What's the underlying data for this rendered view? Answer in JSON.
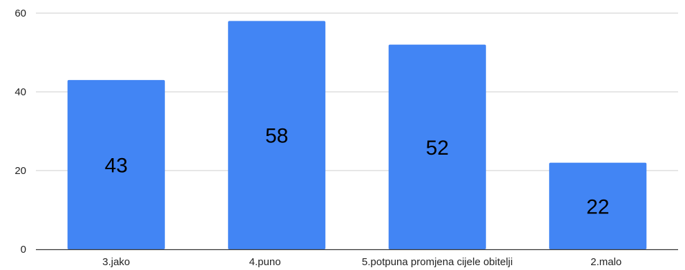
{
  "chart_data": {
    "type": "bar",
    "categories": [
      "3.jako",
      "4.puno",
      "5.potpuna promjena cijele obitelji",
      "2.malo"
    ],
    "values": [
      43,
      58,
      52,
      22
    ],
    "data_labels": [
      "43",
      "58",
      "52",
      "22"
    ],
    "title": "",
    "xlabel": "",
    "ylabel": "",
    "ylim": [
      0,
      60
    ],
    "yticks": [
      0,
      20,
      40,
      60
    ],
    "ytick_labels": [
      "0",
      "20",
      "40",
      "60"
    ],
    "grid": true,
    "legend": "none",
    "colors": {
      "bar": "#4285f4",
      "grid": "#cccccc",
      "axis": "#333333"
    }
  }
}
